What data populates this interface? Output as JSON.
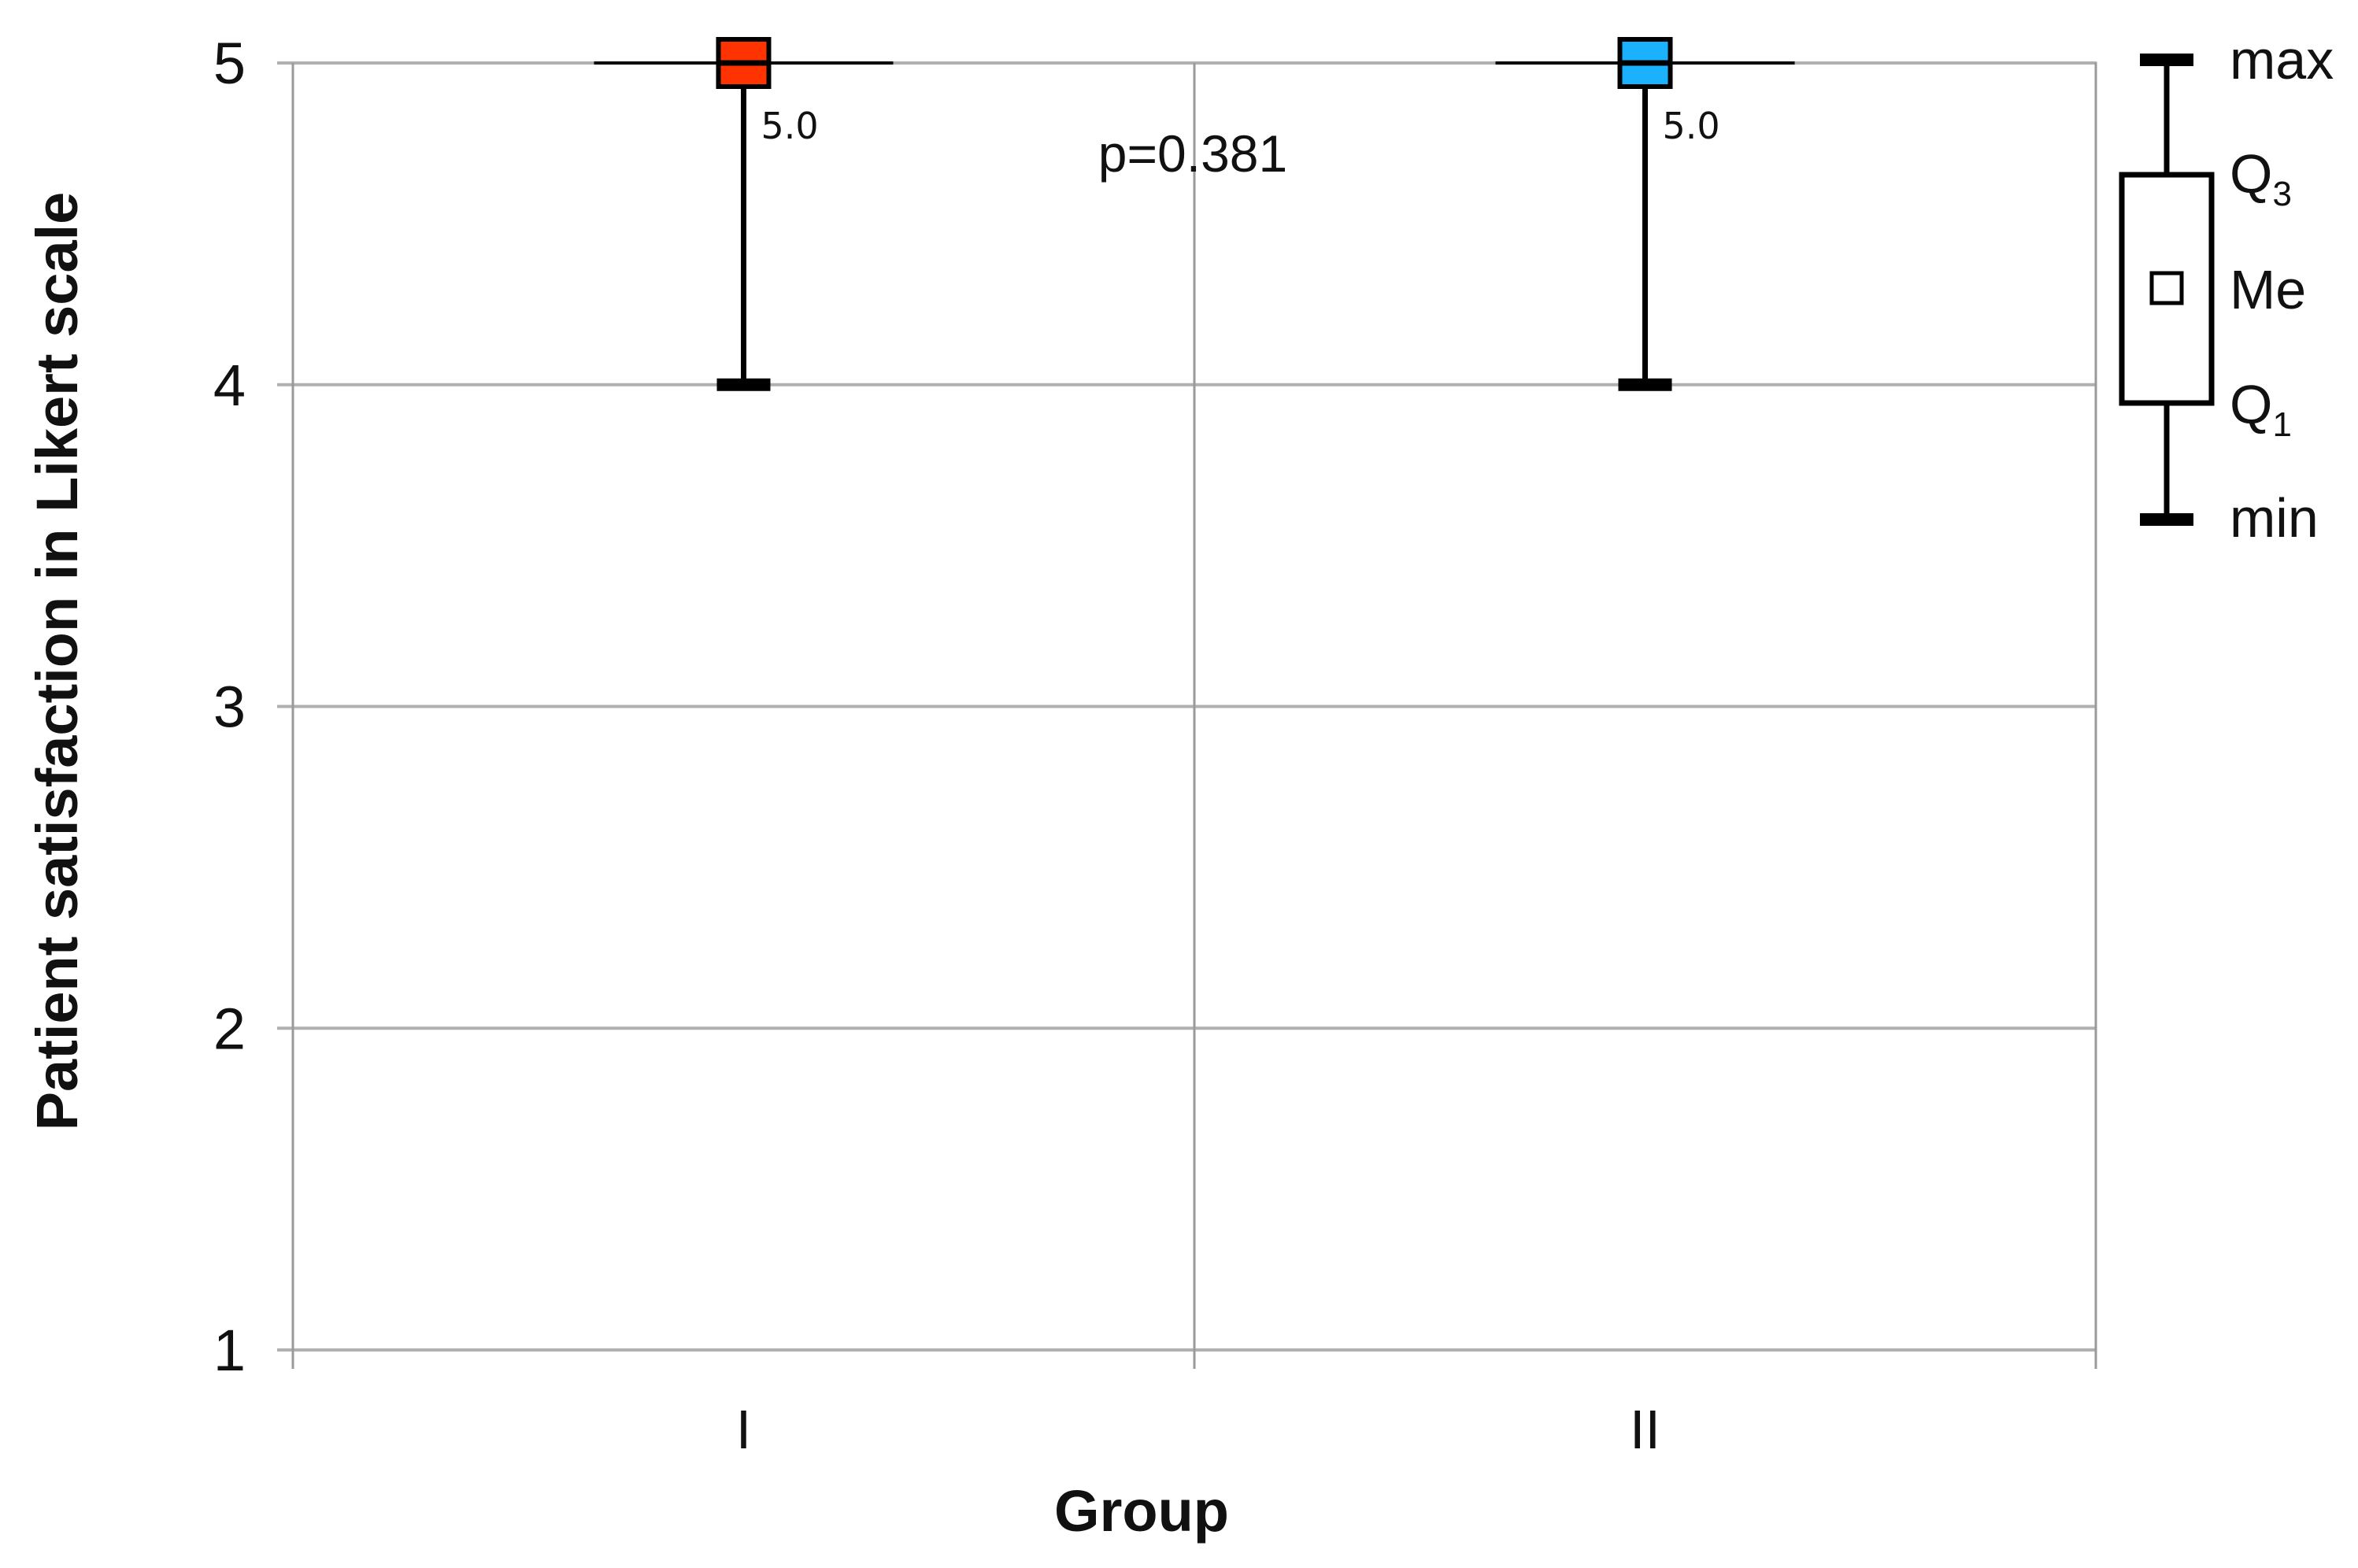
{
  "chart_data": {
    "type": "boxplot",
    "title": "",
    "xlabel": "Group",
    "ylabel": "Patient satisfaction in Likert scale",
    "ylim": [
      1,
      5
    ],
    "yticks": [
      "1",
      "2",
      "3",
      "4",
      "5"
    ],
    "grid": true,
    "categories": [
      "I",
      "II"
    ],
    "series": [
      {
        "category": "I",
        "min": 4,
        "q1": 5,
        "median": 5,
        "q3": 5,
        "max": 5,
        "median_label": "5.0",
        "color": "#ff3300"
      },
      {
        "category": "II",
        "min": 4,
        "q1": 5,
        "median": 5,
        "q3": 5,
        "max": 5,
        "median_label": "5.0",
        "color": "#1ab2ff"
      }
    ],
    "annotation": "p=0.381",
    "legend": {
      "position": "right",
      "labels": {
        "max": "max",
        "q3": "Q",
        "q3_sub": "3",
        "median": "Me",
        "q1": "Q",
        "q1_sub": "1",
        "min": "min"
      }
    }
  }
}
